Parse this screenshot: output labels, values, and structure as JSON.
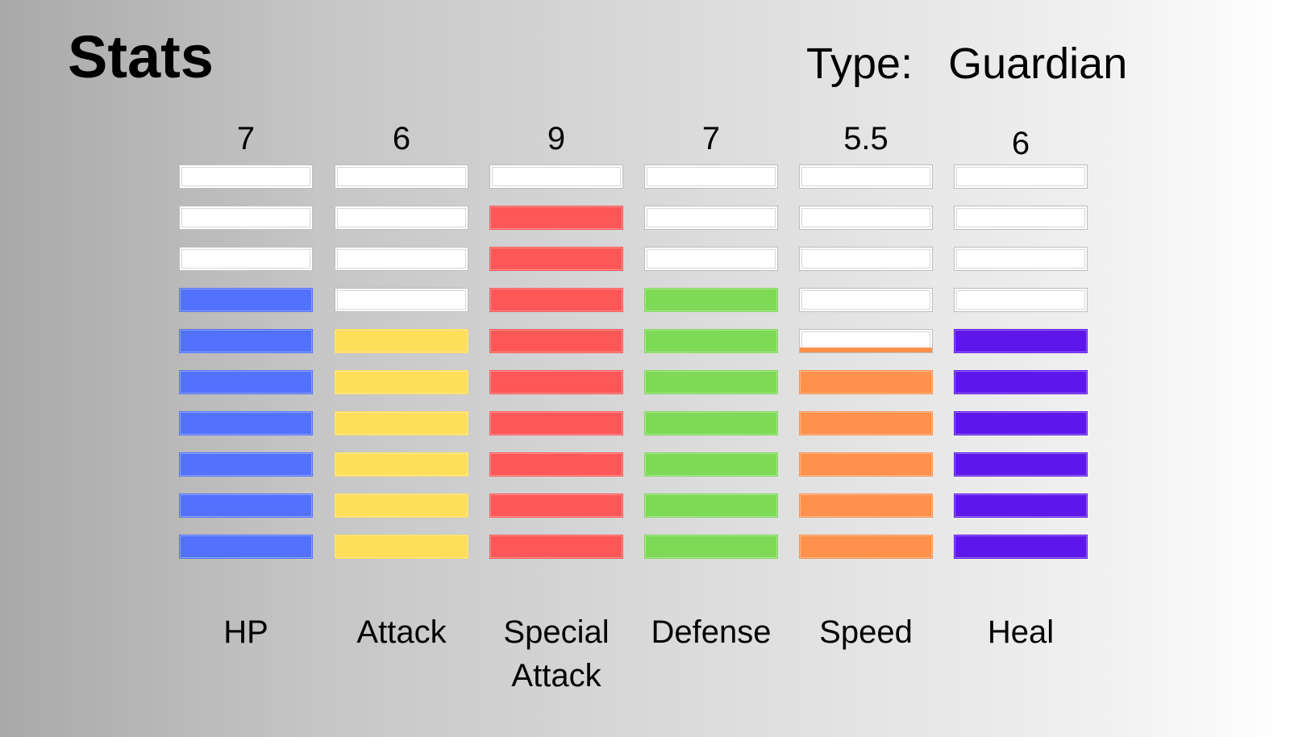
{
  "header": {
    "title": "Stats",
    "type_label": "Type:",
    "type_value": "Guardian"
  },
  "chart_data": {
    "type": "bar",
    "title": "Stats",
    "categories": [
      "HP",
      "Attack",
      "Special Attack",
      "Defense",
      "Speed",
      "Heal"
    ],
    "category_lines": [
      [
        "HP"
      ],
      [
        "Attack"
      ],
      [
        "Special",
        "Attack"
      ],
      [
        "Defense"
      ],
      [
        "Speed"
      ],
      [
        "Heal"
      ]
    ],
    "value_labels": [
      "7",
      "6",
      "9",
      "7",
      "5.5",
      "6"
    ],
    "values": [
      7,
      6,
      9,
      7,
      5.5,
      6
    ],
    "ylim": [
      0,
      10
    ],
    "segments": 10,
    "colors": [
      "#5271ff",
      "#ffde59",
      "#ff5757",
      "#7ed957",
      "#ff914d",
      "#5e17eb"
    ],
    "empty_color": "#ffffff",
    "grid": false,
    "legend": "none"
  }
}
